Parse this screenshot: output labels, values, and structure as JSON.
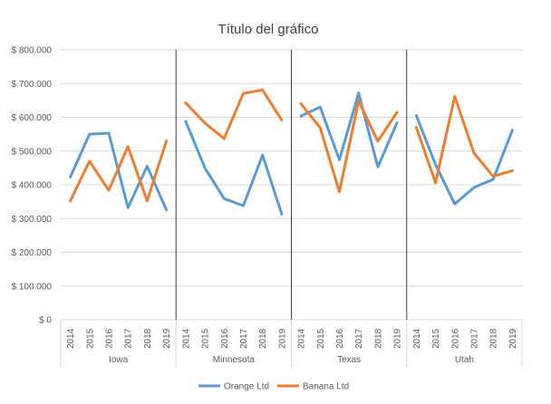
{
  "chart_data": {
    "type": "line",
    "title": "Título del gráfico",
    "xlabel": "",
    "ylabel": "",
    "ylim": [
      0,
      800000
    ],
    "y_ticks": [
      0,
      100000,
      200000,
      300000,
      400000,
      500000,
      600000,
      700000,
      800000
    ],
    "y_tick_labels": [
      "$ 0",
      "$ 100.000",
      "$ 200.000",
      "$ 300.000",
      "$ 400.000",
      "$ 500.000",
      "$ 600.000",
      "$ 700.000",
      "$ 800.000"
    ],
    "grid": "horizontal",
    "legend_position": "bottom",
    "groups": [
      "Iowa",
      "Minnesota",
      "Texas",
      "Utah"
    ],
    "years": [
      "2014",
      "2015",
      "2016",
      "2017",
      "2018",
      "2019"
    ],
    "series": [
      {
        "name": "Orange Ltd",
        "color": "#5B9BD5",
        "values": {
          "Iowa": [
            423000,
            550000,
            553000,
            332000,
            455000,
            326000
          ],
          "Minnesota": [
            588000,
            450000,
            359000,
            338000,
            488000,
            313000
          ],
          "Texas": [
            604000,
            630000,
            474000,
            672000,
            453000,
            584000
          ],
          "Utah": [
            605000,
            460000,
            343000,
            392000,
            416000,
            562000
          ]
        }
      },
      {
        "name": "Banana Ltd",
        "color": "#ED7D31",
        "values": {
          "Iowa": [
            352000,
            470000,
            384000,
            513000,
            352000,
            530000
          ],
          "Minnesota": [
            643000,
            583000,
            537000,
            671000,
            681000,
            592000
          ],
          "Texas": [
            640000,
            569000,
            379000,
            649000,
            529000,
            615000
          ],
          "Utah": [
            570000,
            406000,
            662000,
            494000,
            425000,
            442000
          ]
        }
      }
    ]
  }
}
